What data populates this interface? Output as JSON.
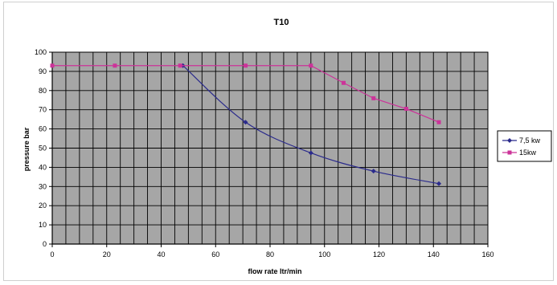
{
  "chart_data": {
    "type": "line",
    "title": "T10",
    "xlabel": "flow rate ltr/min",
    "ylabel": "pressure bar",
    "xlim": [
      0,
      160
    ],
    "ylim": [
      0,
      100
    ],
    "x_ticks": [
      0,
      20,
      40,
      60,
      80,
      100,
      120,
      140,
      160
    ],
    "y_ticks": [
      0,
      10,
      20,
      30,
      40,
      50,
      60,
      70,
      80,
      90,
      100
    ],
    "grid": true,
    "plot_background": "#a6a6a6",
    "legend_position": "right",
    "series": [
      {
        "name": "7,5 kw",
        "color": "#2b2b8c",
        "marker": "diamond",
        "smooth": true,
        "points": [
          [
            48,
            93
          ],
          [
            71,
            63.5
          ],
          [
            95,
            47.5
          ],
          [
            118,
            38
          ],
          [
            142,
            31.5
          ]
        ]
      },
      {
        "name": "15kw",
        "color": "#cc3399",
        "marker": "square",
        "smooth": false,
        "points": [
          [
            0,
            93
          ],
          [
            23,
            93
          ],
          [
            47,
            93
          ],
          [
            71,
            93
          ],
          [
            95,
            93
          ],
          [
            107,
            84
          ],
          [
            118,
            76
          ],
          [
            130,
            70.5
          ],
          [
            142,
            63.5
          ]
        ]
      }
    ]
  }
}
